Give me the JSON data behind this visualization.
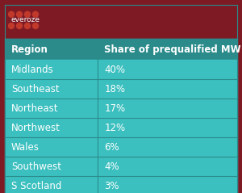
{
  "title_bg_color": "#7D1A24",
  "header_bg_color": "#2B8B8B",
  "row_bg_color": "#3BBFBF",
  "divider_color": "#2B8B8B",
  "text_color_white": "#FFFFFF",
  "logo_dot_color": "#C0392B",
  "logo_text": "everoze",
  "col1_header": "Region",
  "col2_header": "Share of prequalified MW",
  "rows": [
    [
      "Midlands",
      "40%"
    ],
    [
      "Southeast",
      "18%"
    ],
    [
      "Northeast",
      "17%"
    ],
    [
      "Northwest",
      "12%"
    ],
    [
      "Wales",
      "6%"
    ],
    [
      "Southwest",
      "4%"
    ],
    [
      "S Scotland",
      "3%"
    ]
  ],
  "header_font_size": 8.5,
  "row_font_size": 8.5,
  "logo_font_size": 6.5,
  "fig_width": 3.0,
  "fig_height": 2.39,
  "dpi": 100
}
